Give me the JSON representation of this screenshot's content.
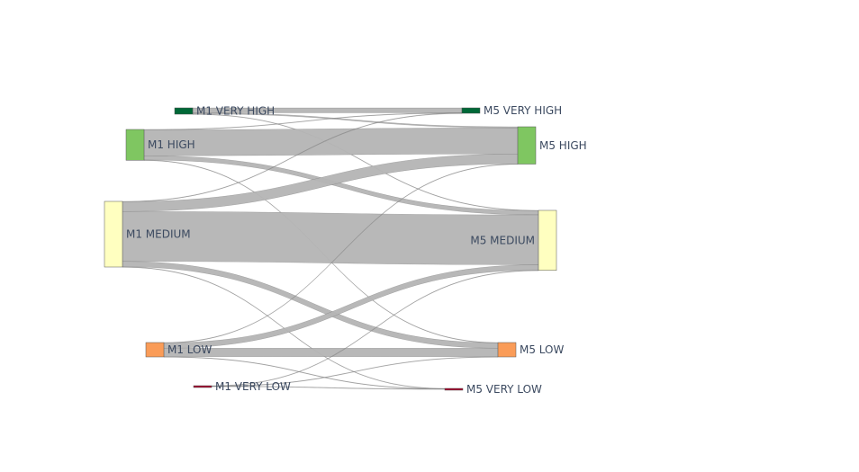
{
  "chart_data": {
    "type": "sankey",
    "title": "",
    "nodes": [
      {
        "id": "M1 VERY HIGH",
        "label": "M1 VERY HIGH",
        "color": "#006837"
      },
      {
        "id": "M1 HIGH",
        "label": "M1 HIGH",
        "color": "#7fc661"
      },
      {
        "id": "M1 MEDIUM",
        "label": "M1 MEDIUM",
        "color": "#ffffc0"
      },
      {
        "id": "M1 LOW",
        "label": "M1 LOW",
        "color": "#fa9c58"
      },
      {
        "id": "M1 VERY LOW",
        "label": "M1 VERY LOW",
        "color": "#a50026"
      },
      {
        "id": "M5 VERY HIGH",
        "label": "M5 VERY HIGH",
        "color": "#006837"
      },
      {
        "id": "M5 HIGH",
        "label": "M5 HIGH",
        "color": "#7fc661"
      },
      {
        "id": "M5 MEDIUM",
        "label": "M5 MEDIUM",
        "color": "#ffffc0"
      },
      {
        "id": "M5 LOW",
        "label": "M5 LOW",
        "color": "#fa9c58"
      },
      {
        "id": "M5 VERY LOW",
        "label": "M5 VERY LOW",
        "color": "#a50026"
      }
    ],
    "links": [
      {
        "source": "M1 VERY HIGH",
        "target": "M5 VERY HIGH",
        "value": 11
      },
      {
        "source": "M1 VERY HIGH",
        "target": "M5 HIGH",
        "value": 2.5
      },
      {
        "source": "M1 VERY HIGH",
        "target": "M5 MEDIUM",
        "value": 0.5
      },
      {
        "source": "M1 HIGH",
        "target": "M5 VERY HIGH",
        "value": 0.5
      },
      {
        "source": "M1 HIGH",
        "target": "M5 HIGH",
        "value": 58
      },
      {
        "source": "M1 HIGH",
        "target": "M5 MEDIUM",
        "value": 9.5
      },
      {
        "source": "M1 HIGH",
        "target": "M5 LOW",
        "value": 0.5
      },
      {
        "source": "M1 MEDIUM",
        "target": "M5 VERY HIGH",
        "value": 0.5
      },
      {
        "source": "M1 MEDIUM",
        "target": "M5 HIGH",
        "value": 22
      },
      {
        "source": "M1 MEDIUM",
        "target": "M5 MEDIUM",
        "value": 111
      },
      {
        "source": "M1 MEDIUM",
        "target": "M5 LOW",
        "value": 12
      },
      {
        "source": "M1 MEDIUM",
        "target": "M5 VERY LOW",
        "value": 0.5
      },
      {
        "source": "M1 LOW",
        "target": "M5 HIGH",
        "value": 0.5
      },
      {
        "source": "M1 LOW",
        "target": "M5 MEDIUM",
        "value": 12
      },
      {
        "source": "M1 LOW",
        "target": "M5 LOW",
        "value": 19
      },
      {
        "source": "M1 LOW",
        "target": "M5 VERY LOW",
        "value": 0.5
      },
      {
        "source": "M1 VERY LOW",
        "target": "M5 MEDIUM",
        "value": 0.5
      },
      {
        "source": "M1 VERY LOW",
        "target": "M5 LOW",
        "value": 0.5
      },
      {
        "source": "M1 VERY LOW",
        "target": "M5 VERY LOW",
        "value": 1
      }
    ],
    "link_color": "#b4b4b4",
    "label_color": "#3c4a60",
    "legend": "none",
    "grid": false
  }
}
